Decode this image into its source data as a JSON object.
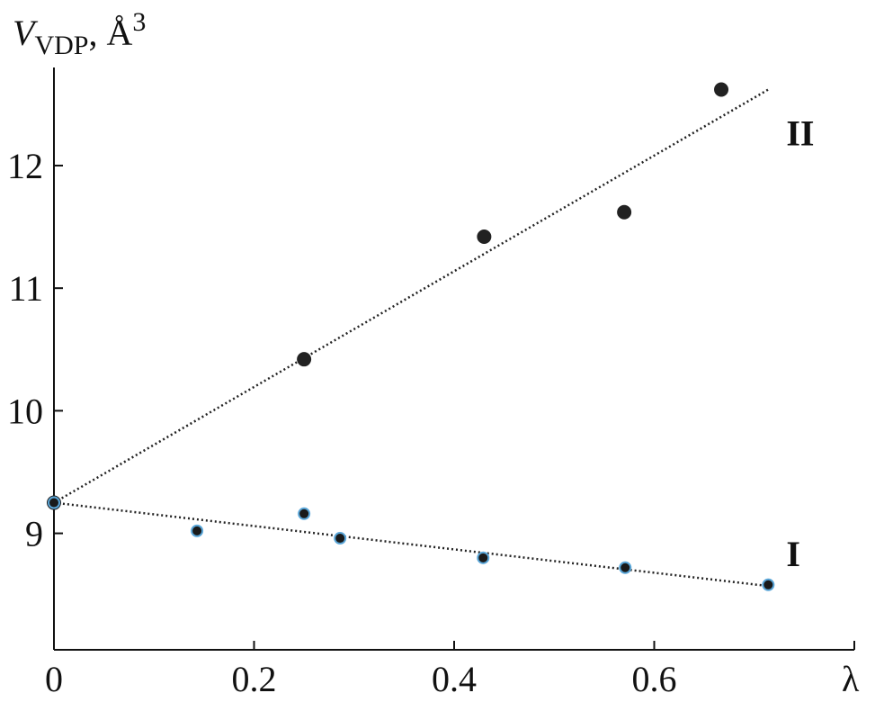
{
  "chart_data": {
    "type": "scatter",
    "ylabel": {
      "symbol": "V",
      "subscript": "VDP",
      "unit": ", Å",
      "superscript": "3"
    },
    "xlabel": "λ",
    "xlim": [
      0,
      0.8
    ],
    "ylim": [
      8.05,
      12.8
    ],
    "x_ticks": [
      0,
      0.2,
      0.4,
      0.6
    ],
    "x_tick_labels": [
      "0",
      "0.2",
      "0.4",
      "0.6"
    ],
    "y_ticks": [
      9,
      10,
      11,
      12
    ],
    "y_tick_labels": [
      "9",
      "10",
      "11",
      "12"
    ],
    "grid": false,
    "series": [
      {
        "name": "II",
        "marker_color": "#222222",
        "points": [
          {
            "x": 0,
            "y": 9.25
          },
          {
            "x": 0.25,
            "y": 10.42
          },
          {
            "x": 0.43,
            "y": 11.42
          },
          {
            "x": 0.57,
            "y": 11.62
          },
          {
            "x": 0.667,
            "y": 12.62
          }
        ],
        "fit_line": {
          "x": [
            0,
            0.714
          ],
          "y": [
            9.25,
            12.62
          ]
        }
      },
      {
        "name": "I",
        "marker_color": "#1a1a1a",
        "marker_edge": "#5aa6d8",
        "points": [
          {
            "x": 0,
            "y": 9.25
          },
          {
            "x": 0.143,
            "y": 9.02
          },
          {
            "x": 0.25,
            "y": 9.16
          },
          {
            "x": 0.286,
            "y": 8.96
          },
          {
            "x": 0.429,
            "y": 8.8
          },
          {
            "x": 0.571,
            "y": 8.72
          },
          {
            "x": 0.714,
            "y": 8.58
          }
        ],
        "fit_line": {
          "x": [
            0,
            0.714
          ],
          "y": [
            9.25,
            8.57
          ]
        }
      }
    ]
  }
}
